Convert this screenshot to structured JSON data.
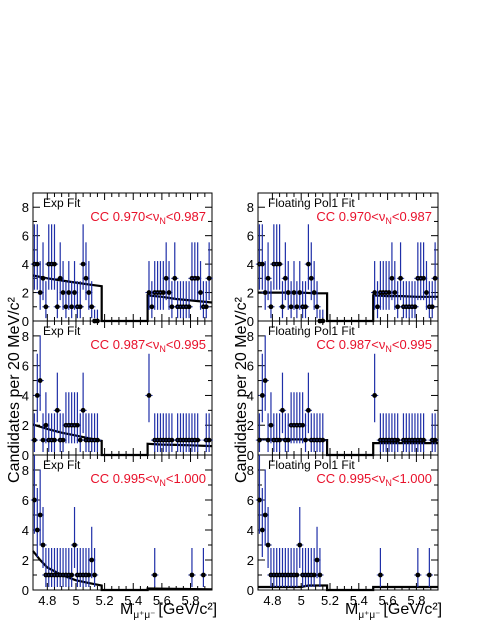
{
  "figure": {
    "ylabel": "Candidates per 20 MeV/c²",
    "xlabel_main": "M",
    "xlabel_sub": "μ⁺μ⁻",
    "xlabel_units": "[GeV/c²]"
  },
  "chart_data": [
    {
      "type": "scatter",
      "panel": "left-top",
      "fit_label": "Exp Fit",
      "cut_label": "CC  0.970<νN<0.987",
      "xlim": [
        4.7,
        5.95
      ],
      "ylim": [
        0,
        9
      ],
      "x_ticks": [
        "4.8",
        "5",
        "5.2",
        "5.4",
        "5.6",
        "5.8"
      ],
      "y_ticks": [
        "0",
        "2",
        "4",
        "6",
        "8"
      ],
      "series": [
        {
          "data_x": [
            4.71,
            4.73,
            4.75,
            4.77,
            4.79,
            4.81,
            4.83,
            4.85,
            4.87,
            4.89,
            4.91,
            4.93,
            4.95,
            4.97,
            4.99,
            5.01,
            5.03,
            5.05,
            5.07,
            5.09,
            5.11,
            5.13,
            5.15,
            5.51,
            5.53,
            5.55,
            5.57,
            5.59,
            5.61,
            5.63,
            5.65,
            5.67,
            5.69,
            5.71,
            5.73,
            5.75,
            5.77,
            5.79,
            5.81,
            5.83,
            5.85,
            5.87,
            5.89,
            5.91,
            5.93
          ],
          "data_y": [
            4,
            4,
            2,
            3,
            1,
            4,
            4,
            4,
            1,
            3,
            2,
            1,
            2,
            1,
            2,
            1,
            1,
            4,
            3,
            2,
            1,
            0,
            0,
            2,
            1,
            2,
            2,
            2,
            2,
            3,
            2,
            1,
            3,
            1,
            1,
            1,
            1,
            1,
            3,
            3,
            3,
            2,
            1,
            1,
            3
          ]
        },
        {
          "fit_x": [
            4.7,
            4.8,
            4.9,
            5.0,
            5.1,
            5.18,
            5.18,
            5.5,
            5.5,
            5.6,
            5.7,
            5.8,
            5.95
          ],
          "fit_y": [
            3.2,
            3.0,
            2.85,
            2.7,
            2.55,
            2.45,
            0,
            0,
            1.8,
            1.7,
            1.55,
            1.45,
            1.3
          ]
        }
      ]
    },
    {
      "type": "scatter",
      "panel": "left-mid",
      "fit_label": "Exp Fit",
      "cut_label": "CC  0.987<νN<0.995",
      "xlim": [
        4.7,
        5.95
      ],
      "ylim": [
        0,
        9
      ],
      "x_ticks": [
        "4.8",
        "5",
        "5.2",
        "5.4",
        "5.6",
        "5.8"
      ],
      "y_ticks": [
        "0",
        "2",
        "4",
        "6",
        "8"
      ],
      "series": [
        {
          "data_x": [
            4.71,
            4.73,
            4.75,
            4.77,
            4.79,
            4.81,
            4.83,
            4.85,
            4.87,
            4.89,
            4.91,
            4.93,
            4.95,
            4.97,
            4.99,
            5.01,
            5.03,
            5.05,
            5.07,
            5.09,
            5.11,
            5.13,
            5.15,
            5.51,
            5.55,
            5.57,
            5.59,
            5.61,
            5.63,
            5.65,
            5.67,
            5.71,
            5.73,
            5.75,
            5.77,
            5.79,
            5.81,
            5.83,
            5.85,
            5.91,
            5.93
          ],
          "data_y": [
            1,
            4,
            5,
            1,
            2,
            1,
            1,
            1,
            3,
            1,
            1,
            2,
            2,
            2,
            2,
            2,
            1,
            3,
            1,
            1,
            1,
            1,
            1,
            4,
            1,
            1,
            1,
            1,
            1,
            1,
            1,
            1,
            1,
            1,
            1,
            1,
            1,
            1,
            1,
            1,
            1
          ]
        },
        {
          "fit_x": [
            4.7,
            4.8,
            4.9,
            5.0,
            5.1,
            5.18,
            5.18,
            5.5,
            5.5,
            5.6,
            5.7,
            5.8,
            5.95
          ],
          "fit_y": [
            2.05,
            1.75,
            1.5,
            1.3,
            1.1,
            0.95,
            0,
            0,
            0.75,
            0.7,
            0.68,
            0.65,
            0.6
          ]
        }
      ]
    },
    {
      "type": "scatter",
      "panel": "left-bot",
      "fit_label": "Exp Fit",
      "cut_label": "CC  0.995<νN<1.000",
      "xlim": [
        4.7,
        5.95
      ],
      "ylim": [
        0,
        9
      ],
      "x_ticks": [
        "4.8",
        "5",
        "5.2",
        "5.4",
        "5.6",
        "5.8"
      ],
      "y_ticks": [
        "0",
        "2",
        "4",
        "6",
        "8"
      ],
      "series": [
        {
          "data_x": [
            4.71,
            4.73,
            4.75,
            4.77,
            4.79,
            4.81,
            4.83,
            4.85,
            4.87,
            4.89,
            4.91,
            4.93,
            4.95,
            4.97,
            4.99,
            5.01,
            5.03,
            5.05,
            5.07,
            5.09,
            5.11,
            5.13,
            5.55,
            5.81,
            5.89
          ],
          "data_y": [
            6,
            4,
            5,
            3,
            1,
            1,
            1,
            1,
            1,
            1,
            1,
            1,
            1,
            1,
            3,
            1,
            1,
            1,
            1,
            1,
            2,
            1,
            1,
            1,
            1
          ]
        },
        {
          "fit_x": [
            4.7,
            4.75,
            4.8,
            4.9,
            5.0,
            5.1,
            5.18,
            5.18,
            5.5,
            5.5,
            5.95
          ],
          "fit_y": [
            2.6,
            2.0,
            1.5,
            1.0,
            0.65,
            0.45,
            0.3,
            0,
            0,
            0.1,
            0.05
          ]
        }
      ]
    },
    {
      "type": "scatter",
      "panel": "right-top",
      "fit_label": "Floating Pol1 Fit",
      "cut_label": "CC  0.970<νN<0.987",
      "xlim": [
        4.7,
        5.95
      ],
      "ylim": [
        0,
        9
      ],
      "x_ticks": [
        "4.8",
        "5",
        "5.2",
        "5.4",
        "5.6",
        "5.8"
      ],
      "y_ticks": [
        "0",
        "2",
        "4",
        "6",
        "8"
      ],
      "series": [
        {
          "data_x": [
            4.71,
            4.73,
            4.75,
            4.77,
            4.79,
            4.81,
            4.83,
            4.85,
            4.87,
            4.89,
            4.91,
            4.93,
            4.95,
            4.97,
            4.99,
            5.01,
            5.03,
            5.05,
            5.07,
            5.09,
            5.11,
            5.13,
            5.15,
            5.51,
            5.53,
            5.55,
            5.57,
            5.59,
            5.61,
            5.63,
            5.65,
            5.67,
            5.69,
            5.71,
            5.73,
            5.75,
            5.77,
            5.79,
            5.81,
            5.83,
            5.85,
            5.87,
            5.89,
            5.91,
            5.93
          ],
          "data_y": [
            4,
            4,
            2,
            3,
            1,
            4,
            4,
            4,
            1,
            3,
            2,
            1,
            2,
            1,
            2,
            1,
            1,
            4,
            3,
            2,
            1,
            0,
            0,
            2,
            1,
            2,
            2,
            2,
            2,
            3,
            2,
            1,
            3,
            1,
            1,
            1,
            1,
            1,
            3,
            3,
            3,
            2,
            1,
            1,
            3
          ]
        },
        {
          "fit_x": [
            4.7,
            4.8,
            4.9,
            5.0,
            5.1,
            5.18,
            5.18,
            5.5,
            5.5,
            5.6,
            5.7,
            5.8,
            5.95
          ],
          "fit_y": [
            2.0,
            2.0,
            2.0,
            2.0,
            1.95,
            1.95,
            0,
            0,
            1.8,
            1.75,
            1.75,
            1.7,
            1.7
          ]
        }
      ]
    },
    {
      "type": "scatter",
      "panel": "right-mid",
      "fit_label": "Floating Pol1 Fit",
      "cut_label": "CC  0.987<νN<0.995",
      "xlim": [
        4.7,
        5.95
      ],
      "ylim": [
        0,
        9
      ],
      "x_ticks": [
        "4.8",
        "5",
        "5.2",
        "5.4",
        "5.6",
        "5.8"
      ],
      "y_ticks": [
        "0",
        "2",
        "4",
        "6",
        "8"
      ],
      "series": [
        {
          "data_x": [
            4.71,
            4.73,
            4.75,
            4.77,
            4.79,
            4.81,
            4.83,
            4.85,
            4.87,
            4.89,
            4.91,
            4.93,
            4.95,
            4.97,
            4.99,
            5.01,
            5.03,
            5.05,
            5.07,
            5.09,
            5.11,
            5.13,
            5.15,
            5.51,
            5.55,
            5.57,
            5.59,
            5.61,
            5.63,
            5.65,
            5.67,
            5.71,
            5.73,
            5.75,
            5.77,
            5.79,
            5.81,
            5.83,
            5.85,
            5.91,
            5.93
          ],
          "data_y": [
            1,
            4,
            5,
            1,
            2,
            1,
            1,
            1,
            3,
            1,
            1,
            2,
            2,
            2,
            2,
            2,
            1,
            3,
            1,
            1,
            1,
            1,
            1,
            4,
            1,
            1,
            1,
            1,
            1,
            1,
            1,
            1,
            1,
            1,
            1,
            1,
            1,
            1,
            1,
            1,
            1
          ]
        },
        {
          "fit_x": [
            4.7,
            4.8,
            4.9,
            5.0,
            5.1,
            5.18,
            5.18,
            5.5,
            5.5,
            5.6,
            5.7,
            5.8,
            5.95
          ],
          "fit_y": [
            1.05,
            1.05,
            1.05,
            1.05,
            1.0,
            1.0,
            0,
            0,
            0.8,
            0.8,
            0.8,
            0.8,
            0.8
          ]
        }
      ]
    },
    {
      "type": "scatter",
      "panel": "right-bot",
      "fit_label": "Floating Pol1 Fit",
      "cut_label": "CC  0.995<νN<1.000",
      "xlim": [
        4.7,
        5.95
      ],
      "ylim": [
        0,
        9
      ],
      "x_ticks": [
        "4.8",
        "5",
        "5.2",
        "5.4",
        "5.6",
        "5.8"
      ],
      "y_ticks": [
        "0",
        "2",
        "4",
        "6",
        "8"
      ],
      "series": [
        {
          "data_x": [
            4.71,
            4.73,
            4.75,
            4.77,
            4.79,
            4.81,
            4.83,
            4.85,
            4.87,
            4.89,
            4.91,
            4.93,
            4.95,
            4.97,
            4.99,
            5.01,
            5.03,
            5.05,
            5.07,
            5.09,
            5.11,
            5.13,
            5.55,
            5.81,
            5.89
          ],
          "data_y": [
            6,
            4,
            5,
            3,
            1,
            1,
            1,
            1,
            1,
            1,
            1,
            1,
            1,
            1,
            3,
            1,
            1,
            1,
            1,
            1,
            2,
            1,
            1,
            1,
            1
          ]
        },
        {
          "fit_x": [
            4.7,
            5.0,
            5.05,
            5.18,
            5.18,
            5.5,
            5.5,
            5.95
          ],
          "fit_y": [
            0.2,
            0.2,
            0.3,
            0.3,
            0,
            0,
            0.2,
            0.2
          ]
        }
      ]
    }
  ]
}
